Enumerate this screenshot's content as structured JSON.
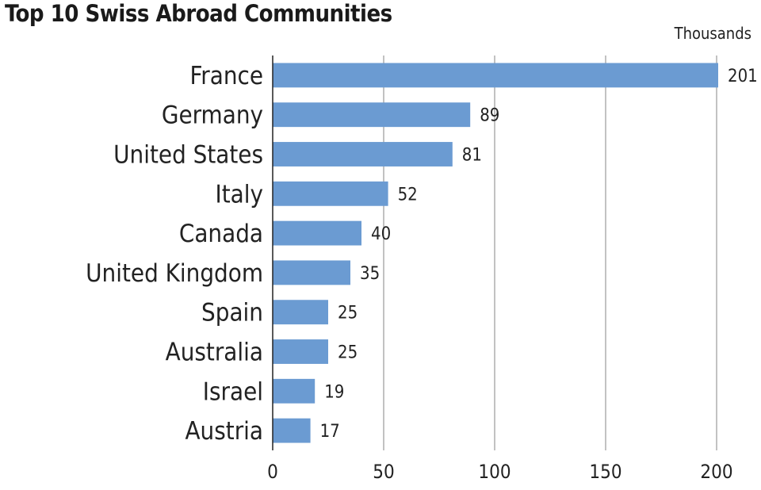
{
  "chart_data": {
    "type": "bar",
    "orientation": "horizontal",
    "title": "Top 10 Swiss Abroad Communities",
    "unit_label": "Thousands",
    "categories": [
      "France",
      "Germany",
      "United States",
      "Italy",
      "Canada",
      "United Kingdom",
      "Spain",
      "Australia",
      "Israel",
      "Austria"
    ],
    "values": [
      201,
      89,
      81,
      52,
      40,
      35,
      25,
      25,
      19,
      17
    ],
    "xlim": [
      0,
      200
    ],
    "xticks": [
      0,
      50,
      100,
      150,
      200
    ],
    "grid": true,
    "bar_color": "#6b9bd2"
  }
}
